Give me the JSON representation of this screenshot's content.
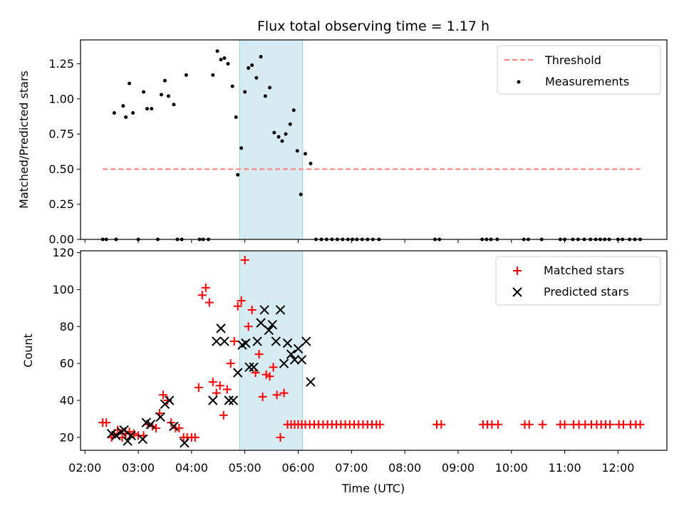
{
  "figure": {
    "title": "Flux total observing time = 1.17 h"
  },
  "chart_data": [
    {
      "type": "scatter",
      "panel": "top",
      "xlabel": "",
      "ylabel": "Matched/Predicted stars",
      "xlim": [
        "01:55",
        "12:55"
      ],
      "ylim": [
        0,
        1.42
      ],
      "yticks": [
        0.0,
        0.25,
        0.5,
        0.75,
        1.0,
        1.25
      ],
      "ytick_labels": [
        "0.00",
        "0.25",
        "0.50",
        "0.75",
        "1.00",
        "1.25"
      ],
      "shaded_interval": [
        "04:54",
        "06:05"
      ],
      "shade_color": "#add8e6",
      "legend_position": "top-right",
      "series": [
        {
          "name": "Threshold",
          "kind": "dashed-line",
          "color": "#ff7f7f",
          "x": [
            "02:20",
            "12:25"
          ],
          "y": [
            0.5,
            0.5
          ]
        },
        {
          "name": "Measurements",
          "kind": "dots",
          "color": "#000000",
          "x": [
            "02:20",
            "02:24",
            "02:33",
            "02:35",
            "02:43",
            "02:46",
            "02:50",
            "02:54",
            "03:00",
            "03:06",
            "03:10",
            "03:15",
            "03:22",
            "03:26",
            "03:30",
            "03:34",
            "03:40",
            "03:44",
            "03:49",
            "03:54",
            "04:09",
            "04:13",
            "04:19",
            "04:24",
            "04:29",
            "04:33",
            "04:37",
            "04:41",
            "04:46",
            "04:50",
            "04:52",
            "04:56",
            "05:00",
            "05:04",
            "05:08",
            "05:13",
            "05:18",
            "05:23",
            "05:28",
            "05:33",
            "05:38",
            "05:42",
            "05:46",
            "05:51",
            "05:55",
            "05:59",
            "06:03",
            "06:08",
            "06:14",
            "06:20",
            "06:26",
            "06:32",
            "06:38",
            "06:44",
            "06:50",
            "06:56",
            "07:01",
            "07:06",
            "07:12",
            "07:18",
            "07:24",
            "07:31",
            "08:34",
            "08:39",
            "09:27",
            "09:32",
            "09:37",
            "09:44",
            "10:14",
            "10:19",
            "10:34",
            "10:55",
            "11:00",
            "11:09",
            "11:15",
            "11:22",
            "11:29",
            "11:35",
            "11:40",
            "11:45",
            "11:50",
            "12:00",
            "12:05",
            "12:13",
            "12:19",
            "12:25"
          ],
          "y": [
            0,
            0,
            0.9,
            0,
            0.95,
            0.87,
            1.11,
            0.9,
            0,
            1.05,
            0.93,
            0.93,
            0,
            1.03,
            1.13,
            1.02,
            0.96,
            0,
            0,
            1.17,
            0,
            0,
            0,
            1.17,
            1.34,
            1.28,
            1.29,
            1.25,
            1.09,
            0.87,
            0.46,
            0.65,
            1.05,
            1.22,
            1.24,
            1.15,
            1.3,
            1.02,
            1.08,
            0.76,
            0.73,
            0.7,
            0.75,
            0.82,
            0.92,
            0.63,
            0.32,
            0.61,
            0.54,
            0,
            0,
            0,
            0,
            0,
            0,
            0,
            0,
            0,
            0,
            0,
            0,
            0,
            0,
            0,
            0,
            0,
            0,
            0,
            0,
            0,
            0,
            0,
            0,
            0,
            0,
            0,
            0,
            0,
            0,
            0,
            0,
            0,
            0,
            0,
            0,
            0
          ]
        }
      ]
    },
    {
      "type": "scatter",
      "panel": "bottom",
      "xlabel": "Time (UTC)",
      "ylabel": "Count",
      "xlim": [
        "01:55",
        "12:55"
      ],
      "ylim": [
        13,
        121
      ],
      "yticks": [
        20,
        40,
        60,
        80,
        100,
        120
      ],
      "ytick_labels": [
        "20",
        "40",
        "60",
        "80",
        "100",
        "120"
      ],
      "xticks": [
        "02:00",
        "03:00",
        "04:00",
        "05:00",
        "06:00",
        "07:00",
        "08:00",
        "09:00",
        "10:00",
        "11:00",
        "12:00"
      ],
      "shaded_interval": [
        "04:54",
        "06:05"
      ],
      "shade_color": "#add8e6",
      "legend_position": "top-right",
      "series": [
        {
          "name": "Matched stars",
          "marker": "plus",
          "color": "#ff0000",
          "x": [
            "02:20",
            "02:24",
            "02:30",
            "02:33",
            "02:37",
            "02:42",
            "02:46",
            "02:50",
            "02:55",
            "03:00",
            "03:06",
            "03:11",
            "03:16",
            "03:20",
            "03:24",
            "03:28",
            "03:33",
            "03:37",
            "03:42",
            "03:46",
            "03:51",
            "03:55",
            "04:00",
            "04:04",
            "04:08",
            "04:12",
            "04:16",
            "04:20",
            "04:24",
            "04:28",
            "04:32",
            "04:36",
            "04:40",
            "04:44",
            "04:48",
            "04:52",
            "04:56",
            "05:00",
            "05:04",
            "05:08",
            "05:12",
            "05:16",
            "05:20",
            "05:24",
            "05:28",
            "05:32",
            "05:36",
            "05:40",
            "05:44",
            "05:48",
            "05:52",
            "05:56",
            "06:00",
            "06:04",
            "06:08",
            "06:13",
            "06:18",
            "06:23",
            "06:28",
            "06:33",
            "06:38",
            "06:43",
            "06:48",
            "06:53",
            "06:58",
            "07:03",
            "07:08",
            "07:13",
            "07:18",
            "07:23",
            "07:28",
            "07:32",
            "08:36",
            "08:41",
            "09:28",
            "09:33",
            "09:38",
            "09:45",
            "10:15",
            "10:20",
            "10:35",
            "10:55",
            "11:00",
            "11:10",
            "11:16",
            "11:23",
            "11:30",
            "11:36",
            "11:41",
            "11:46",
            "11:51",
            "12:01",
            "12:06",
            "12:14",
            "12:20",
            "12:25"
          ],
          "y": [
            28,
            28,
            20,
            22,
            24,
            20,
            22,
            23,
            22,
            21,
            21,
            27,
            26,
            25,
            33,
            43,
            40,
            28,
            25,
            25,
            20,
            20,
            20,
            20,
            47,
            97,
            101,
            93,
            50,
            44,
            48,
            32,
            46,
            60,
            72,
            91,
            94,
            116,
            80,
            89,
            55,
            65,
            42,
            54,
            53,
            58,
            43,
            20,
            44,
            27,
            27,
            27,
            27,
            27,
            27,
            27,
            27,
            27,
            27,
            27,
            27,
            27,
            27,
            27,
            27,
            27,
            27,
            27,
            27,
            27,
            27,
            27,
            27,
            27,
            27,
            27,
            27,
            27,
            27,
            27,
            27,
            27,
            27,
            27,
            27,
            27,
            27,
            27,
            27,
            27,
            27,
            27,
            27,
            27,
            27,
            27
          ]
        },
        {
          "name": "Predicted stars",
          "marker": "x",
          "color": "#000000",
          "x": [
            "02:30",
            "02:35",
            "02:41",
            "02:44",
            "02:48",
            "02:52",
            "03:05",
            "03:09",
            "03:14",
            "03:25",
            "03:30",
            "03:35",
            "03:40",
            "03:52",
            "04:24",
            "04:28",
            "04:33",
            "04:37",
            "04:42",
            "04:47",
            "04:52",
            "04:57",
            "05:01",
            "05:05",
            "05:10",
            "05:14",
            "05:18",
            "05:22",
            "05:27",
            "05:31",
            "05:35",
            "05:40",
            "05:44",
            "05:48",
            "05:52",
            "05:56",
            "06:00",
            "06:04",
            "06:09",
            "06:14"
          ],
          "y": [
            22,
            21,
            23,
            24,
            18,
            21,
            19,
            28,
            27,
            31,
            38,
            40,
            26,
            17,
            40,
            72,
            79,
            72,
            40,
            40,
            55,
            70,
            71,
            58,
            58,
            72,
            82,
            89,
            78,
            81,
            72,
            89,
            60,
            71,
            65,
            62,
            68,
            62,
            72,
            50
          ]
        }
      ]
    }
  ]
}
